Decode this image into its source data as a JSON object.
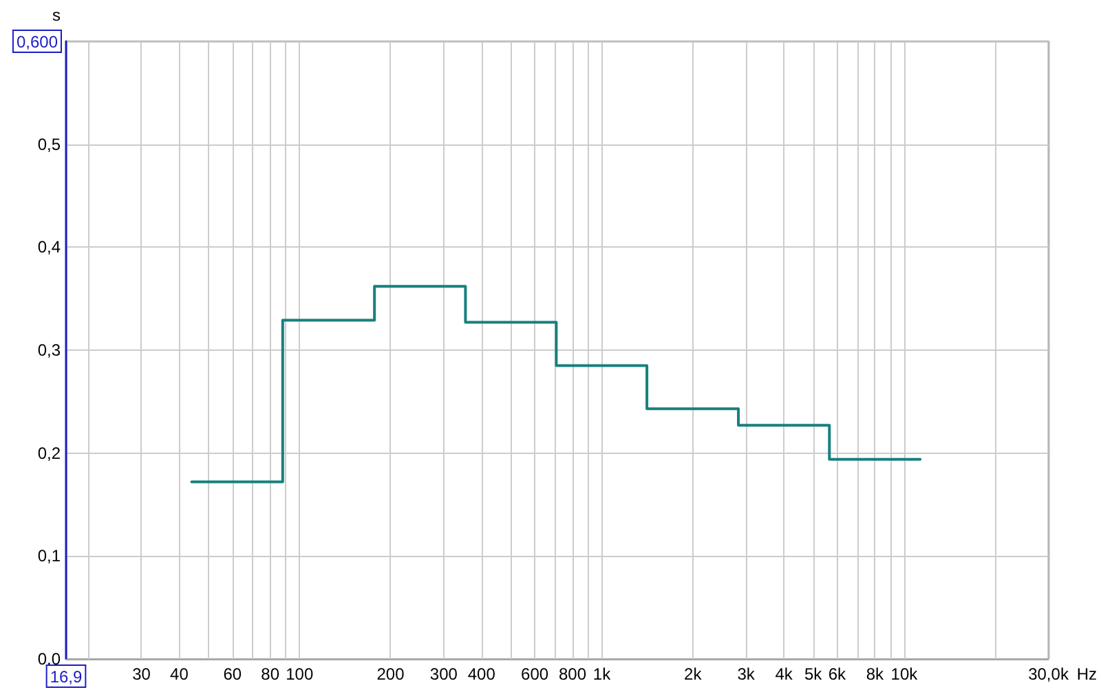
{
  "chart_data": {
    "type": "step",
    "xlabel": "Hz",
    "ylabel": "s",
    "x": [
      44,
      88,
      177,
      354,
      707,
      1410,
      2830,
      5660,
      11300
    ],
    "values": [
      0.172,
      0.329,
      0.362,
      0.327,
      0.285,
      0.243,
      0.227,
      0.194,
      0.194
    ],
    "color": "#17807e",
    "line_style": "solid",
    "marker": "none",
    "log": "x",
    "grid": true,
    "xlim": [
      16.9,
      30000
    ],
    "ylim": [
      0,
      0.6
    ],
    "xticks": [
      {
        "value": 16.9,
        "label": "16,9"
      },
      {
        "value": 20,
        "label": null
      },
      30,
      40,
      {
        "value": 50,
        "label": null
      },
      60,
      {
        "value": 70,
        "label": null
      },
      80,
      {
        "value": 90,
        "label": null
      },
      100,
      200,
      300,
      400,
      {
        "value": 500,
        "label": null
      },
      600,
      {
        "value": 700,
        "label": null
      },
      800,
      {
        "value": 900,
        "label": null
      },
      {
        "value": 1000,
        "label": "1k"
      },
      {
        "value": 2000,
        "label": "2k"
      },
      {
        "value": 3000,
        "label": "3k"
      },
      {
        "value": 4000,
        "label": "4k"
      },
      {
        "value": 5000,
        "label": "5k"
      },
      {
        "value": 6000,
        "label": "6k"
      },
      {
        "value": 7000,
        "label": null
      },
      {
        "value": 8000,
        "label": "8k"
      },
      {
        "value": 9000,
        "label": null
      },
      {
        "value": 10000,
        "label": "10k"
      },
      {
        "value": 20000,
        "label": null
      },
      {
        "value": 30000,
        "label": "30,0k"
      }
    ],
    "yticks": [
      {
        "value": 0,
        "label": "0,0"
      },
      {
        "value": 0.1,
        "label": "0,1"
      },
      {
        "value": 0.2,
        "label": "0,2"
      },
      {
        "value": 0.3,
        "label": "0,3"
      },
      {
        "value": 0.4,
        "label": "0,4"
      },
      {
        "value": 0.5,
        "label": "0,5"
      },
      {
        "value": 0.6,
        "label": "0,600"
      }
    ]
  }
}
